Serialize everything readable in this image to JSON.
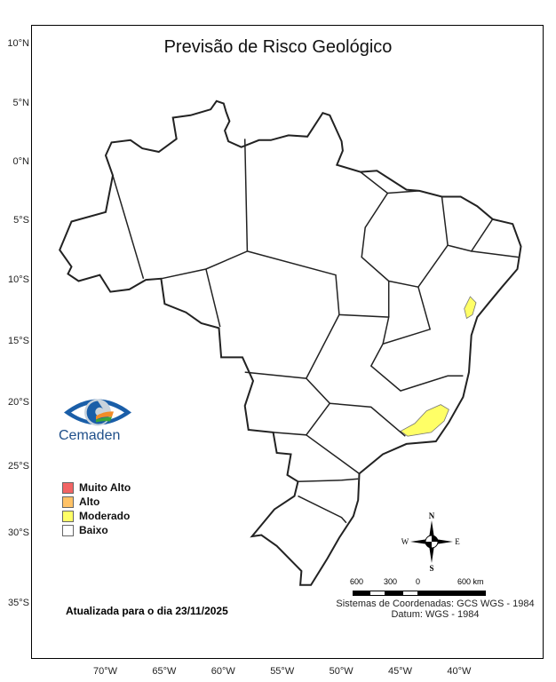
{
  "title": "Previsão de Risco Geológico",
  "lat_ticks": [
    {
      "lat": 10,
      "label": "10°N"
    },
    {
      "lat": 5,
      "label": "5°N"
    },
    {
      "lat": 0,
      "label": "0°N"
    },
    {
      "lat": -5,
      "label": "5°S"
    },
    {
      "lat": -10,
      "label": "10°S"
    },
    {
      "lat": -15,
      "label": "15°S"
    },
    {
      "lat": -20,
      "label": "20°S"
    },
    {
      "lat": -25,
      "label": "25°S"
    },
    {
      "lat": -30,
      "label": "30°S"
    },
    {
      "lat": -35,
      "label": "35°S"
    }
  ],
  "lon_ticks": [
    {
      "lon": -70,
      "label": "70°W"
    },
    {
      "lon": -65,
      "label": "65°W"
    },
    {
      "lon": -60,
      "label": "60°W"
    },
    {
      "lon": -55,
      "label": "55°W"
    },
    {
      "lon": -50,
      "label": "50°W"
    },
    {
      "lon": -45,
      "label": "45°W"
    },
    {
      "lon": -40,
      "label": "40°W"
    }
  ],
  "logo": {
    "text": "Cemaden"
  },
  "legend": [
    {
      "label": "Muito Alto",
      "color": "#f26464"
    },
    {
      "label": "Alto",
      "color": "#ffc266"
    },
    {
      "label": "Moderado",
      "color": "#ffff66"
    },
    {
      "label": "Baixo",
      "color": "#ffffff"
    }
  ],
  "risk_areas": [
    {
      "level": "Moderado",
      "color": "#ffff66",
      "coords": [
        [
          -39.1,
          -11.3
        ],
        [
          -38.6,
          -11.8
        ],
        [
          -38.9,
          -12.8
        ],
        [
          -39.4,
          -13.1
        ],
        [
          -39.6,
          -12.3
        ]
      ]
    },
    {
      "level": "Moderado",
      "color": "#ffff66",
      "coords": [
        [
          -41.6,
          -20.1
        ],
        [
          -40.9,
          -20.5
        ],
        [
          -41.3,
          -21.4
        ],
        [
          -42.4,
          -22.3
        ],
        [
          -44.4,
          -22.6
        ],
        [
          -45.0,
          -22.2
        ],
        [
          -43.8,
          -21.6
        ],
        [
          -42.8,
          -20.6
        ]
      ]
    }
  ],
  "updated": "Atualizada para o dia 23/11/2025",
  "compass": {
    "n": "N",
    "s": "S",
    "e": "E",
    "w": "W"
  },
  "scale": {
    "labels": [
      "600",
      "300",
      "0",
      "600 km"
    ]
  },
  "coord_system": "Sistemas de Coordenadas: GCS WGS - 1984",
  "datum": "Datum: WGS - 1984"
}
